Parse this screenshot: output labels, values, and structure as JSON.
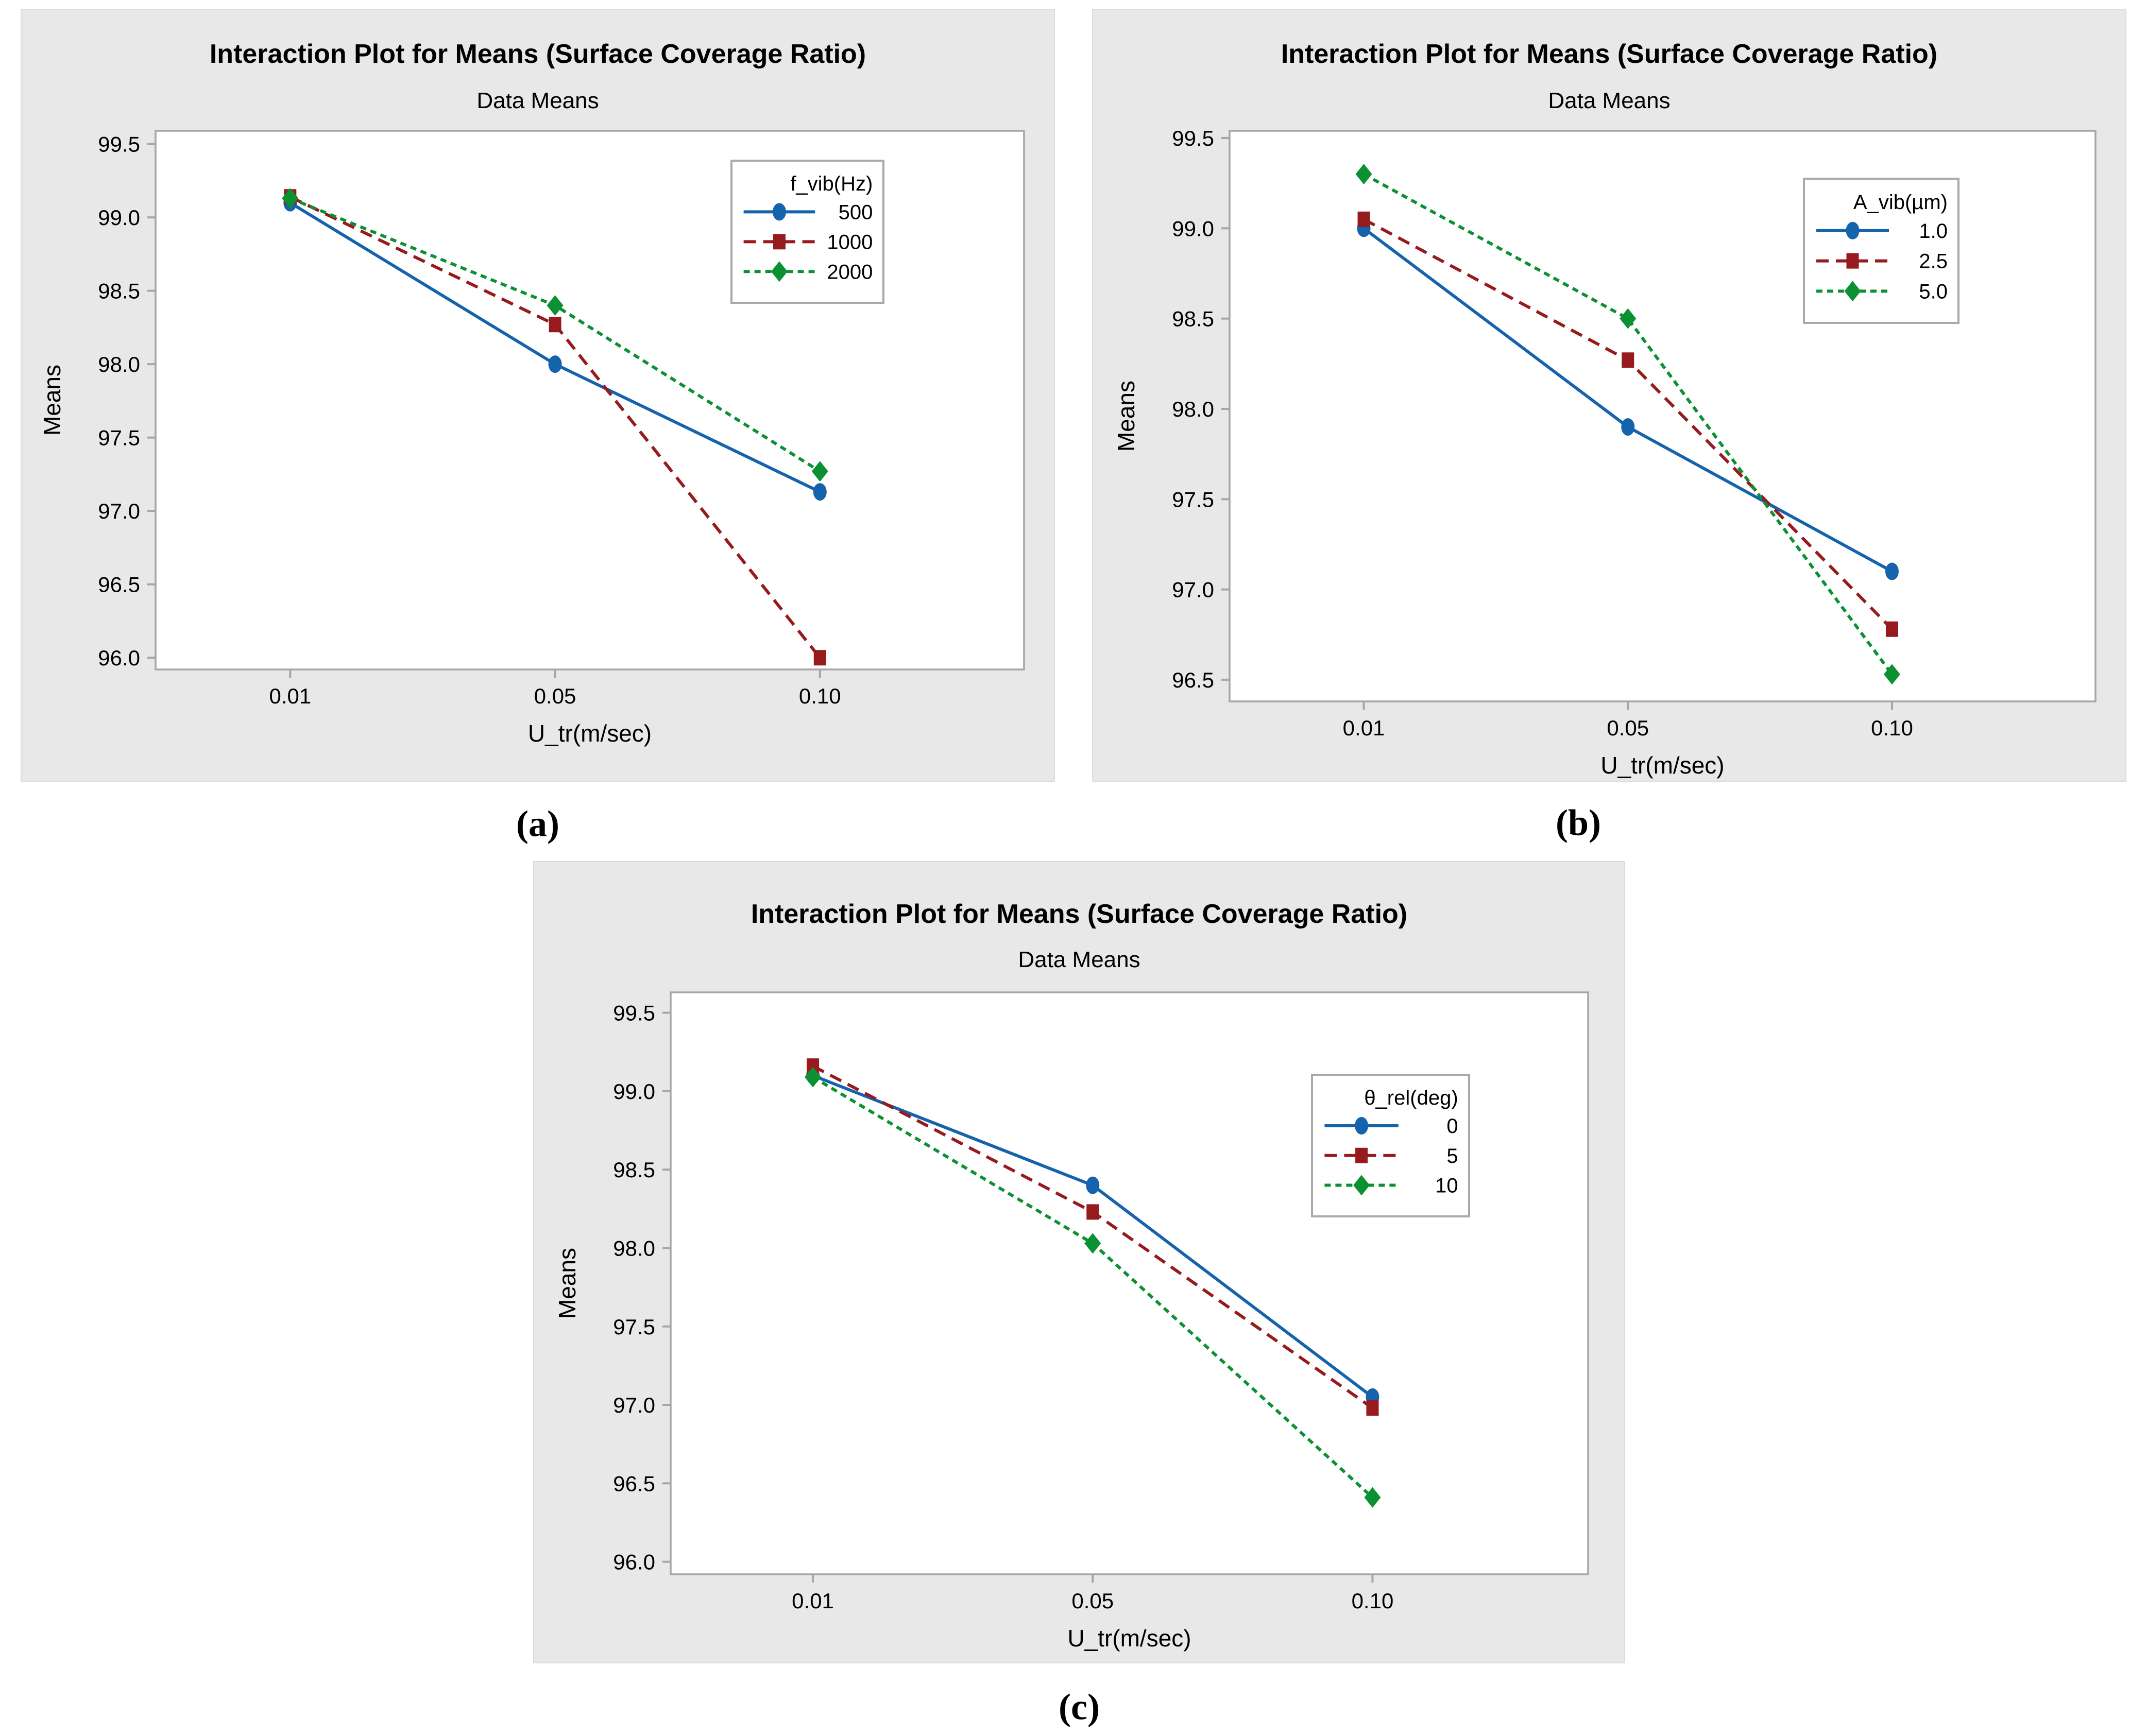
{
  "figure": {
    "background": "#ffffff",
    "panel_bg": "#e9e8e8",
    "plot_bg": "#ffffff",
    "axis_color": "#a6a6a6",
    "text_color": "#000000",
    "captions": {
      "a": "(a)",
      "b": "(b)",
      "c": "(c)"
    }
  },
  "chart_data": [
    {
      "id": "a",
      "type": "line",
      "title": "Interaction Plot for Means (Surface Coverage Ratio)",
      "subtitle": "Data Means",
      "xlabel": "U_tr(m/sec)",
      "ylabel": "Means",
      "categories": [
        "0.01",
        "0.05",
        "0.10"
      ],
      "ylim": [
        95.92,
        99.59
      ],
      "yticks": [
        99.5,
        99.0,
        98.5,
        98.0,
        97.5,
        97.0,
        96.5,
        96.0
      ],
      "grid": false,
      "legend_title": "f_vib(Hz)",
      "legend_position": "upper-right",
      "series": [
        {
          "name": "500",
          "color": "#1663ad",
          "marker": "circle",
          "dash": "solid",
          "values": [
            99.1,
            98.0,
            97.13
          ]
        },
        {
          "name": "1000",
          "color": "#971b1e",
          "marker": "square",
          "dash": "long",
          "values": [
            99.14,
            98.27,
            96.0
          ]
        },
        {
          "name": "2000",
          "color": "#0c9132",
          "marker": "diamond",
          "dash": "short",
          "values": [
            99.13,
            98.4,
            97.27
          ]
        }
      ]
    },
    {
      "id": "b",
      "type": "line",
      "title": "Interaction Plot for Means (Surface Coverage Ratio)",
      "subtitle": "Data Means",
      "xlabel": "U_tr(m/sec)",
      "ylabel": "Means",
      "categories": [
        "0.01",
        "0.05",
        "0.10"
      ],
      "ylim": [
        96.38,
        99.54
      ],
      "yticks": [
        99.5,
        99.0,
        98.5,
        98.0,
        97.5,
        97.0,
        96.5
      ],
      "grid": false,
      "legend_title": "A_vib(µm)",
      "legend_position": "upper-right",
      "series": [
        {
          "name": "1.0",
          "color": "#1663ad",
          "marker": "circle",
          "dash": "solid",
          "values": [
            99.0,
            97.9,
            97.1
          ]
        },
        {
          "name": "2.5",
          "color": "#971b1e",
          "marker": "square",
          "dash": "long",
          "values": [
            99.05,
            98.27,
            96.78
          ]
        },
        {
          "name": "5.0",
          "color": "#0c9132",
          "marker": "diamond",
          "dash": "short",
          "values": [
            99.3,
            98.5,
            96.53
          ]
        }
      ]
    },
    {
      "id": "c",
      "type": "line",
      "title": "Interaction Plot for Means (Surface Coverage Ratio)",
      "subtitle": "Data Means",
      "xlabel": "U_tr(m/sec)",
      "ylabel": "Means",
      "categories": [
        "0.01",
        "0.05",
        "0.10"
      ],
      "ylim": [
        95.92,
        99.63
      ],
      "yticks": [
        99.5,
        99.0,
        98.5,
        98.0,
        97.5,
        97.0,
        96.5,
        96.0
      ],
      "grid": false,
      "legend_title": "θ_rel(deg)",
      "legend_position": "upper-right",
      "series": [
        {
          "name": "0",
          "color": "#1663ad",
          "marker": "circle",
          "dash": "solid",
          "values": [
            99.1,
            98.4,
            97.05
          ]
        },
        {
          "name": "5",
          "color": "#971b1e",
          "marker": "square",
          "dash": "long",
          "values": [
            99.16,
            98.23,
            96.98
          ]
        },
        {
          "name": "10",
          "color": "#0c9132",
          "marker": "diamond",
          "dash": "short",
          "values": [
            99.09,
            98.03,
            96.41
          ]
        }
      ]
    }
  ]
}
